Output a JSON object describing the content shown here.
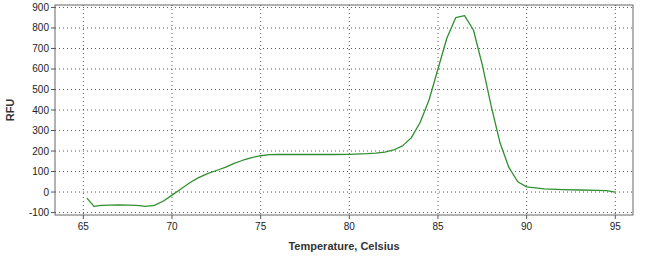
{
  "chart_data": {
    "type": "line",
    "x_label": "Temperature, Celsius",
    "y_label": "RFU",
    "x": [
      65.2,
      65.6,
      66,
      67,
      68,
      68.5,
      69,
      69.5,
      70,
      70.5,
      71,
      71.5,
      72,
      72.5,
      73,
      73.5,
      74,
      74.5,
      75,
      75.5,
      76,
      77,
      78,
      79,
      80,
      81,
      81.5,
      82,
      82.5,
      83,
      83.5,
      84,
      84.5,
      85,
      85.5,
      86,
      86.5,
      87,
      87.5,
      88,
      88.5,
      89,
      89.5,
      90,
      91,
      92,
      93,
      94,
      94.5,
      95
    ],
    "series": [
      {
        "color": "#2f8f2f",
        "values": [
          -30,
          -70,
          -65,
          -63,
          -65,
          -70,
          -65,
          -45,
          -15,
          15,
          45,
          70,
          90,
          105,
          120,
          140,
          155,
          168,
          177,
          182,
          184,
          183,
          183,
          183,
          184,
          187,
          190,
          195,
          205,
          225,
          265,
          340,
          450,
          600,
          750,
          850,
          860,
          790,
          620,
          420,
          240,
          120,
          50,
          25,
          15,
          12,
          10,
          8,
          7,
          0
        ]
      }
    ],
    "xlim": [
      63.4,
      96
    ],
    "ylim": [
      -112,
      912
    ],
    "xticks": [
      65,
      70,
      75,
      80,
      85,
      90,
      95
    ],
    "yticks": [
      -100,
      0,
      100,
      200,
      300,
      400,
      500,
      600,
      700,
      800,
      900
    ],
    "grid": true
  }
}
